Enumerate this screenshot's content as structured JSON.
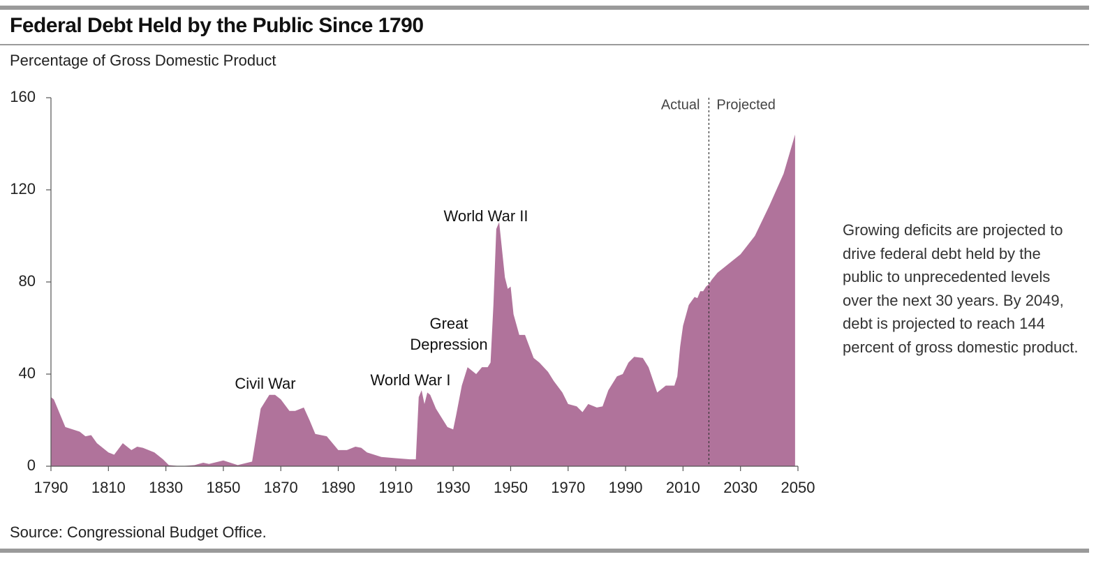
{
  "chart_data": {
    "type": "area",
    "title": "Federal Debt Held by the Public Since 1790",
    "subtitle": "Percentage of Gross Domestic Product",
    "source": "Source: Congressional Budget Office.",
    "note": "Growing deficits are projected to drive federal debt held by the public to unprecedented levels over the next 30 years. By 2049, debt is projected to reach 144 percent of gross domestic product.",
    "color": "#b0739b",
    "x": [
      1790,
      1791,
      1795,
      1800,
      1802,
      1804,
      1806,
      1810,
      1812,
      1815,
      1818,
      1820,
      1822,
      1826,
      1829,
      1831,
      1835,
      1840,
      1843,
      1845,
      1850,
      1855,
      1860,
      1863,
      1866,
      1868,
      1870,
      1873,
      1875,
      1878,
      1880,
      1882,
      1886,
      1890,
      1893,
      1896,
      1898,
      1900,
      1905,
      1910,
      1915,
      1917,
      1918,
      1919,
      1920,
      1921,
      1922,
      1924,
      1928,
      1930,
      1931,
      1933,
      1935,
      1936,
      1938,
      1940,
      1942,
      1943,
      1944,
      1945,
      1946,
      1948,
      1949,
      1950,
      1951,
      1953,
      1955,
      1958,
      1960,
      1963,
      1965,
      1968,
      1970,
      1973,
      1975,
      1977,
      1980,
      1982,
      1984,
      1987,
      1989,
      1991,
      1993,
      1996,
      1998,
      2001,
      2004,
      2007,
      2008,
      2009,
      2010,
      2012,
      2014,
      2015,
      2016,
      2017,
      2018,
      2019,
      2020,
      2022,
      2025,
      2030,
      2035,
      2040,
      2045,
      2049
    ],
    "values": [
      30,
      29,
      17,
      15,
      13,
      13.5,
      10,
      6,
      5,
      10,
      7,
      8.5,
      8,
      6,
      3,
      0.5,
      0,
      0.5,
      1.5,
      1,
      2.5,
      0.5,
      2,
      25,
      31,
      31,
      29,
      24,
      24,
      25.5,
      20,
      14,
      13,
      7,
      7,
      8.5,
      8,
      6,
      4,
      3.5,
      3,
      3,
      30,
      33,
      27,
      32,
      31,
      25,
      17,
      16,
      22,
      35,
      43,
      42,
      40,
      43,
      43,
      45,
      70,
      103,
      106,
      82,
      77,
      78,
      66,
      57,
      57,
      47,
      45,
      41,
      37,
      32,
      27,
      26,
      23.5,
      27,
      25.5,
      26,
      33,
      39,
      40,
      45,
      47.5,
      47,
      43,
      32,
      35,
      35,
      39,
      52,
      61,
      70,
      73.5,
      73,
      76,
      76,
      78,
      79,
      81,
      84,
      87,
      92,
      100,
      113,
      127,
      144
    ],
    "xlim": [
      1790,
      2050
    ],
    "ylim": [
      0,
      160
    ],
    "xticks": [
      1790,
      1810,
      1830,
      1850,
      1870,
      1890,
      1910,
      1930,
      1950,
      1970,
      1990,
      2010,
      2030,
      2050
    ],
    "yticks": [
      0,
      40,
      80,
      120,
      160
    ],
    "projection_start": 2019,
    "period_labels": [
      "Actual",
      "Projected"
    ],
    "annotations": [
      "Civil War",
      "World War I",
      "Great Depression",
      "World War II"
    ]
  }
}
